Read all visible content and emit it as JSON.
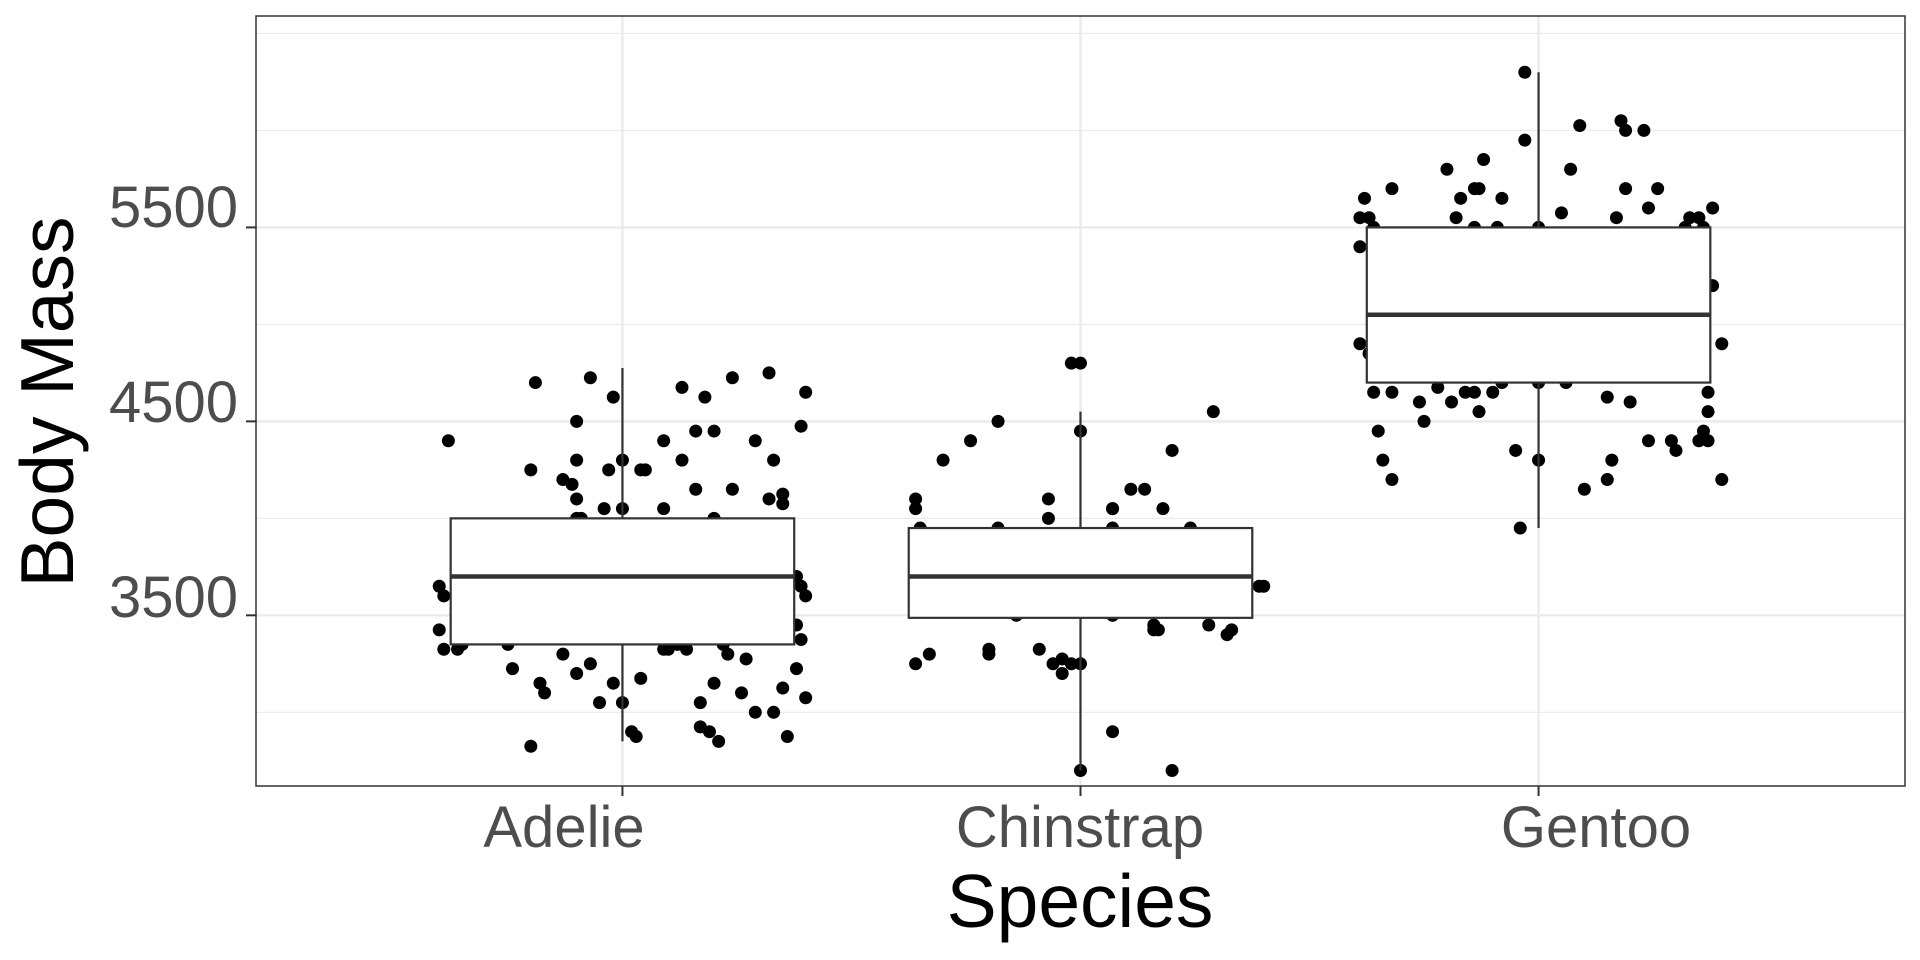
{
  "chart_data": {
    "type": "box",
    "xlabel": "Species",
    "ylabel": "Body Mass",
    "categories": [
      "Adelie",
      "Chinstrap",
      "Gentoo"
    ],
    "ylim": [
      2620,
      6590
    ],
    "yticks": [
      3500,
      4500,
      5500
    ],
    "grid": true,
    "boxes": [
      {
        "category": "Adelie",
        "whisker_low": 2850,
        "q1": 3350,
        "median": 3700,
        "q3": 4000,
        "whisker_high": 4775
      },
      {
        "category": "Chinstrap",
        "whisker_low": 2700,
        "q1": 3487,
        "median": 3700,
        "q3": 3950,
        "whisker_high": 4550
      },
      {
        "category": "Gentoo",
        "whisker_low": 3950,
        "q1": 4700,
        "median": 5050,
        "q3": 5500,
        "whisker_high": 6300
      }
    ],
    "points": {
      "Adelie": [
        [
          0.32,
          4750
        ],
        [
          0.24,
          4725
        ],
        [
          -0.19,
          4700
        ],
        [
          0.13,
          4675
        ],
        [
          -0.07,
          4725
        ],
        [
          0.4,
          4650
        ],
        [
          0.18,
          4625
        ],
        [
          -0.02,
          4625
        ],
        [
          -0.38,
          4400
        ],
        [
          -0.2,
          4250
        ],
        [
          -0.1,
          4500
        ],
        [
          -0.1,
          4300
        ],
        [
          0.09,
          4400
        ],
        [
          0.0,
          4300
        ],
        [
          0.2,
          4450
        ],
        [
          0.33,
          4300
        ],
        [
          0.16,
          4450
        ],
        [
          0.29,
          4400
        ],
        [
          0.39,
          4475
        ],
        [
          -0.13,
          4200
        ],
        [
          -0.11,
          4175
        ],
        [
          0.13,
          4300
        ],
        [
          0.05,
          4250
        ],
        [
          -0.03,
          4250
        ],
        [
          0.32,
          4100
        ],
        [
          0.35,
          4075
        ],
        [
          0.24,
          4150
        ],
        [
          0.16,
          4150
        ],
        [
          -0.1,
          4100
        ],
        [
          0.0,
          4050
        ],
        [
          0.09,
          4050
        ],
        [
          0.2,
          4000
        ],
        [
          -0.1,
          4000
        ],
        [
          -0.09,
          4000
        ],
        [
          -0.04,
          4050
        ],
        [
          0.04,
          4250
        ],
        [
          0.35,
          4125
        ],
        [
          -0.4,
          3650
        ],
        [
          -0.39,
          3600
        ],
        [
          -0.4,
          3425
        ],
        [
          -0.39,
          3325
        ],
        [
          -0.36,
          3325
        ],
        [
          -0.32,
          3400
        ],
        [
          -0.25,
          3350
        ],
        [
          -0.24,
          3225
        ],
        [
          -0.18,
          3150
        ],
        [
          -0.17,
          3100
        ],
        [
          -0.13,
          3300
        ],
        [
          -0.1,
          3200
        ],
        [
          -0.07,
          3250
        ],
        [
          -0.05,
          3050
        ],
        [
          -0.02,
          3150
        ],
        [
          0.0,
          3050
        ],
        [
          0.04,
          3175
        ],
        [
          0.09,
          3325
        ],
        [
          0.1,
          3325
        ],
        [
          0.14,
          3325
        ],
        [
          0.17,
          3050
        ],
        [
          0.2,
          3150
        ],
        [
          0.23,
          3300
        ],
        [
          0.26,
          3100
        ],
        [
          0.27,
          3275
        ],
        [
          0.29,
          3000
        ],
        [
          0.33,
          3000
        ],
        [
          0.35,
          3125
        ],
        [
          0.38,
          3225
        ],
        [
          0.39,
          3375
        ],
        [
          0.4,
          3075
        ],
        [
          0.38,
          3450
        ],
        [
          0.39,
          3650
        ],
        [
          0.4,
          3600
        ],
        [
          0.38,
          3700
        ],
        [
          0.03,
          2875
        ],
        [
          0.17,
          2925
        ],
        [
          0.19,
          2900
        ],
        [
          0.21,
          2850
        ],
        [
          0.36,
          2875
        ],
        [
          -0.2,
          2825
        ],
        [
          0.02,
          2900
        ],
        [
          -0.35,
          3350
        ],
        [
          0.12,
          3350
        ],
        [
          0.22,
          3350
        ]
      ],
      "Chinstrap": [
        [
          -0.02,
          4800
        ],
        [
          0.0,
          4800
        ],
        [
          0.0,
          4450
        ],
        [
          -0.3,
          4300
        ],
        [
          -0.18,
          4500
        ],
        [
          -0.24,
          4400
        ],
        [
          -0.36,
          4100
        ],
        [
          -0.36,
          4050
        ],
        [
          -0.07,
          4100
        ],
        [
          -0.07,
          4000
        ],
        [
          0.07,
          4050
        ],
        [
          0.07,
          4050
        ],
        [
          0.11,
          4150
        ],
        [
          0.14,
          4150
        ],
        [
          0.18,
          4050
        ],
        [
          0.2,
          4350
        ],
        [
          0.29,
          4550
        ],
        [
          0.24,
          3950
        ],
        [
          -0.35,
          3950
        ],
        [
          -0.18,
          3950
        ],
        [
          0.07,
          3950
        ],
        [
          0.4,
          3650
        ],
        [
          0.39,
          3650
        ],
        [
          0.33,
          3425
        ],
        [
          0.32,
          3400
        ],
        [
          0.28,
          3450
        ],
        [
          0.17,
          3425
        ],
        [
          0.16,
          3450
        ],
        [
          0.16,
          3425
        ],
        [
          0.07,
          3500
        ],
        [
          -0.14,
          3500
        ],
        [
          -0.33,
          3300
        ],
        [
          -0.36,
          3250
        ],
        [
          -0.2,
          3300
        ],
        [
          -0.2,
          3325
        ],
        [
          -0.09,
          3325
        ],
        [
          -0.06,
          3250
        ],
        [
          -0.04,
          3275
        ],
        [
          -0.04,
          3200
        ],
        [
          0.0,
          3250
        ],
        [
          -0.02,
          3250
        ],
        [
          0.07,
          2900
        ],
        [
          0.2,
          2700
        ],
        [
          0.0,
          2700
        ]
      ],
      "Gentoo": [
        [
          -0.03,
          6300
        ],
        [
          0.18,
          6050
        ],
        [
          0.19,
          6000
        ],
        [
          0.09,
          6025
        ],
        [
          0.23,
          6000
        ],
        [
          -0.03,
          5950
        ],
        [
          -0.12,
          5850
        ],
        [
          0.07,
          5800
        ],
        [
          -0.14,
          5700
        ],
        [
          -0.17,
          5650
        ],
        [
          -0.08,
          5650
        ],
        [
          0.19,
          5700
        ],
        [
          0.26,
          5700
        ],
        [
          0.35,
          5550
        ],
        [
          0.32,
          5500
        ],
        [
          0.33,
          5550
        ],
        [
          0.36,
          5500
        ],
        [
          0.38,
          5600
        ],
        [
          0.24,
          5600
        ],
        [
          0.17,
          5550
        ],
        [
          -0.2,
          5800
        ],
        [
          -0.13,
          5700
        ],
        [
          -0.18,
          5550
        ],
        [
          -0.14,
          5500
        ],
        [
          -0.09,
          5500
        ],
        [
          0.0,
          5500
        ],
        [
          0.05,
          5575
        ],
        [
          -0.36,
          5500
        ],
        [
          -0.37,
          5550
        ],
        [
          -0.38,
          5650
        ],
        [
          -0.32,
          5700
        ],
        [
          -0.39,
          5550
        ],
        [
          -0.39,
          5400
        ],
        [
          0.34,
          5400
        ],
        [
          0.38,
          5200
        ],
        [
          0.4,
          4900
        ],
        [
          -0.39,
          4900
        ],
        [
          -0.37,
          4850
        ],
        [
          -0.36,
          4650
        ],
        [
          -0.32,
          4650
        ],
        [
          -0.26,
          4600
        ],
        [
          -0.14,
          4650
        ],
        [
          -0.13,
          4550
        ],
        [
          -0.08,
          4700
        ],
        [
          -0.1,
          4650
        ],
        [
          0.0,
          4700
        ],
        [
          0.06,
          4700
        ],
        [
          0.2,
          4600
        ],
        [
          0.24,
          4400
        ],
        [
          0.29,
          4400
        ],
        [
          0.3,
          4350
        ],
        [
          0.35,
          4400
        ],
        [
          0.36,
          4450
        ],
        [
          0.37,
          4400
        ],
        [
          0.37,
          4550
        ],
        [
          0.37,
          4650
        ],
        [
          0.16,
          4300
        ],
        [
          0.15,
          4200
        ],
        [
          0.1,
          4150
        ],
        [
          -0.35,
          4450
        ],
        [
          -0.34,
          4300
        ],
        [
          -0.32,
          4200
        ],
        [
          -0.25,
          4500
        ],
        [
          -0.19,
          4600
        ],
        [
          -0.16,
          4650
        ],
        [
          -0.05,
          4350
        ],
        [
          0.0,
          4300
        ],
        [
          -0.04,
          3950
        ],
        [
          0.4,
          4200
        ],
        [
          -0.22,
          4675
        ],
        [
          0.15,
          4625
        ]
      ]
    }
  }
}
